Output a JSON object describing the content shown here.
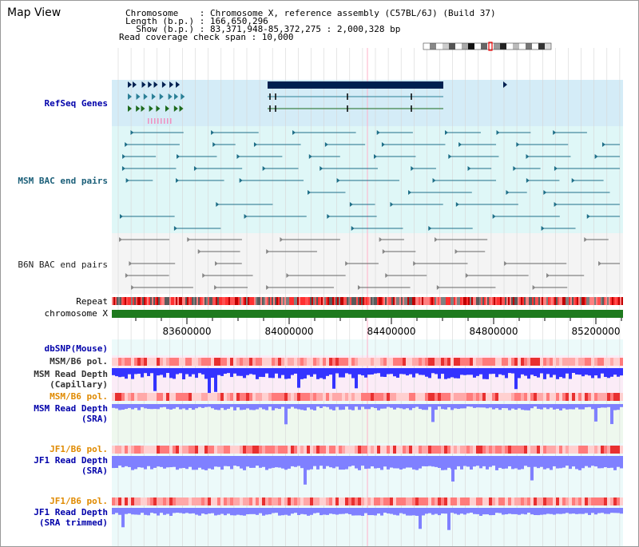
{
  "header": {
    "title": "Map View",
    "info_lines": [
      "Chromosome    : Chromosome X, reference assembly (C57BL/6J) (Build 37)",
      "Length (b.p.) : 166,650,296",
      "  Show (b.p.) : 83,371,948-85,372,275 : 2,000,328 bp",
      "Read coverage check span : 10,000"
    ]
  },
  "tracks": {
    "refseq": "RefSeq Genes",
    "msm_bac": "MSM BAC end pairs",
    "b6n_bac": "B6N BAC end pairs",
    "repeat": "Repeat",
    "chromosome": "chromosome X",
    "dbsnp": "dbSNP(Mouse)",
    "msm_b6_pol_1": "MSM/B6 pol.",
    "msm_read_depth_cap_1": "MSM Read Depth",
    "msm_read_depth_cap_2": "(Capillary)",
    "msm_b6_pol_2": "MSM/B6 pol.",
    "msm_read_depth_sra_1": "MSM Read Depth",
    "msm_read_depth_sra_2": "(SRA)",
    "jf1_b6_pol_1": "JF1/B6 pol.",
    "jf1_read_depth_1": "JF1 Read Depth",
    "jf1_read_depth_2": "(SRA)",
    "jf1_b6_pol_2": "JF1/B6 pol.",
    "jf1_read_depth_trim_1": "JF1 Read Depth",
    "jf1_read_depth_trim_2": "(SRA trimmed)"
  },
  "axis": {
    "ticks": [
      "83600000",
      "84000000",
      "84400000",
      "84800000",
      "85200000"
    ]
  },
  "colors": {
    "refseq_bg": "#d4ecf7",
    "msm_bg": "#dff7f7",
    "b6n_bg": "#f4f4f4",
    "gene_dark": "#002050",
    "gene_teal": "#2a7f96",
    "gene_green": "#1d6a1d",
    "msm_line": "#1f6f88",
    "b6n_line": "#666666",
    "chrom_bar": "#1e7a1e",
    "depth_blue": "#3333ff",
    "depth_light": "#7f80ff",
    "pol_red": "#ff6f6f"
  }
}
